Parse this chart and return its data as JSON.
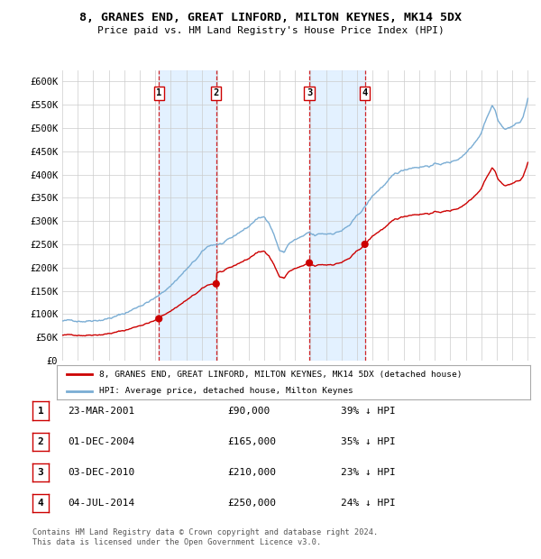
{
  "title": "8, GRANES END, GREAT LINFORD, MILTON KEYNES, MK14 5DX",
  "subtitle": "Price paid vs. HM Land Registry's House Price Index (HPI)",
  "sale_annotations": [
    {
      "num": "1",
      "date": "23-MAR-2001",
      "price": "£90,000",
      "pct": "39% ↓ HPI"
    },
    {
      "num": "2",
      "date": "01-DEC-2004",
      "price": "£165,000",
      "pct": "35% ↓ HPI"
    },
    {
      "num": "3",
      "date": "03-DEC-2010",
      "price": "£210,000",
      "pct": "23% ↓ HPI"
    },
    {
      "num": "4",
      "date": "04-JUL-2014",
      "price": "£250,000",
      "pct": "24% ↓ HPI"
    }
  ],
  "legend_line1": "8, GRANES END, GREAT LINFORD, MILTON KEYNES, MK14 5DX (detached house)",
  "legend_line2": "HPI: Average price, detached house, Milton Keynes",
  "footnote1": "Contains HM Land Registry data © Crown copyright and database right 2024.",
  "footnote2": "This data is licensed under the Open Government Licence v3.0.",
  "hpi_color": "#7aadd4",
  "sale_color": "#cc0000",
  "background_color": "#ffffff",
  "grid_color": "#cccccc",
  "highlight_color": "#ddeeff",
  "ylim": [
    0,
    625000
  ],
  "yticks": [
    0,
    50000,
    100000,
    150000,
    200000,
    250000,
    300000,
    350000,
    400000,
    450000,
    500000,
    550000,
    600000
  ],
  "sales_t": [
    2001.23,
    2004.92,
    2010.92,
    2014.5
  ],
  "sales_p": [
    90000,
    165000,
    210000,
    250000
  ],
  "xstart": 1995.0,
  "xend": 2025.5
}
